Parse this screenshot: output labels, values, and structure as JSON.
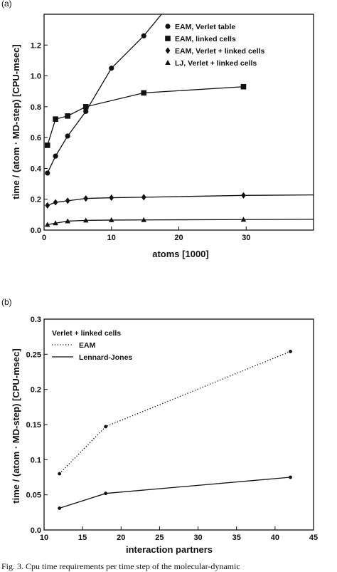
{
  "chart_data": [
    {
      "panel": "(a)",
      "type": "line",
      "xlabel": "atoms [1000]",
      "ylabel": "time / (atom · MD-step) [CPU-msec]",
      "xlim": [
        0,
        40
      ],
      "ylim": [
        0,
        1.4
      ],
      "xticks": [
        0,
        10,
        20,
        30
      ],
      "yticks": [
        0,
        0.2,
        0.4,
        0.6,
        0.8,
        1.0,
        1.2
      ],
      "ytick_labels": [
        "0.0",
        "0.2",
        "0.4",
        "0.6",
        "0.8",
        "1.0",
        "1.2"
      ],
      "legend_position": "top-right",
      "series": [
        {
          "name": "EAM, Verlet table",
          "marker": "circle",
          "x": [
            0.5,
            1.7,
            3.5,
            6.2,
            10,
            14.8
          ],
          "y": [
            0.37,
            0.48,
            0.61,
            0.77,
            1.05,
            1.26
          ],
          "extend_to": [
            18,
            1.43
          ]
        },
        {
          "name": "EAM, linked cells",
          "marker": "square",
          "x": [
            0.5,
            1.7,
            3.5,
            6.2,
            14.8,
            29.6
          ],
          "y": [
            0.55,
            0.72,
            0.74,
            0.8,
            0.89,
            0.93
          ]
        },
        {
          "name": "EAM, Verlet + linked cells",
          "marker": "diamond",
          "x": [
            0.5,
            1.7,
            3.5,
            6.2,
            10,
            14.8,
            29.6
          ],
          "y": [
            0.16,
            0.18,
            0.19,
            0.205,
            0.21,
            0.213,
            0.225
          ],
          "extend_to": [
            40,
            0.228
          ]
        },
        {
          "name": "LJ, Verlet + linked cells",
          "marker": "triangle",
          "x": [
            0.5,
            1.7,
            3.5,
            6.2,
            10,
            14.8,
            29.6
          ],
          "y": [
            0.035,
            0.045,
            0.058,
            0.063,
            0.065,
            0.066,
            0.068
          ],
          "extend_to": [
            40,
            0.07
          ]
        }
      ]
    },
    {
      "panel": "(b)",
      "type": "line",
      "xlabel": "interaction partners",
      "ylabel": "time / (atom · MD-step) [CPU-msec]",
      "xlim": [
        10,
        45
      ],
      "ylim": [
        0,
        0.3
      ],
      "xticks": [
        10,
        15,
        20,
        25,
        30,
        35,
        40,
        45
      ],
      "yticks": [
        0,
        0.05,
        0.1,
        0.15,
        0.2,
        0.25,
        0.3
      ],
      "ytick_labels": [
        "0.0",
        "0.05",
        "0.1",
        "0.15",
        "0.2",
        "0.25",
        "0.3"
      ],
      "legend_title": "Verlet + linked cells",
      "legend_position": "top-left",
      "series": [
        {
          "name": "EAM",
          "linestyle": "dotted",
          "x": [
            12,
            18,
            42
          ],
          "y": [
            0.08,
            0.147,
            0.254
          ]
        },
        {
          "name": "Lennard-Jones",
          "linestyle": "solid",
          "x": [
            12,
            18,
            42
          ],
          "y": [
            0.031,
            0.052,
            0.075
          ]
        }
      ]
    }
  ],
  "caption": "Fig. 3. Cpu time requirements per time step of the molecular-dynamic"
}
